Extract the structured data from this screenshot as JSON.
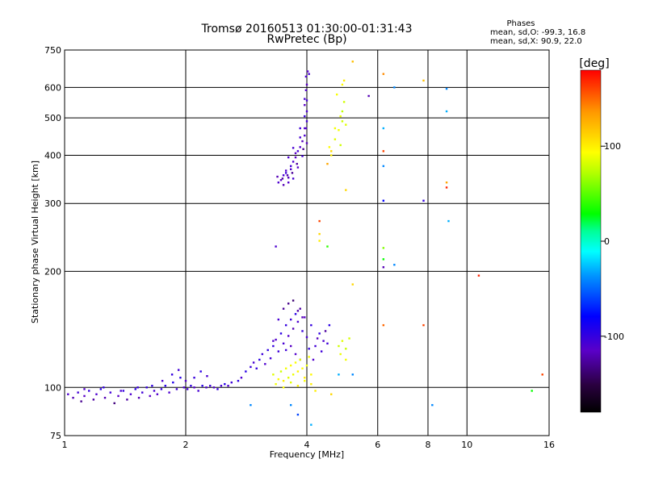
{
  "chart_data": {
    "type": "scatter",
    "title": "Tromsø 20160513 01:30:00-01:31:43",
    "subtitle": "RwPretec (Bp)",
    "xlabel": "Frequency [MHz]",
    "ylabel": "Stationary phase Virtual Height [km]",
    "x_scale": "log",
    "y_scale": "log",
    "xlim": [
      1,
      16
    ],
    "ylim": [
      75,
      750
    ],
    "x_ticks": [
      1,
      2,
      4,
      6,
      8,
      10,
      16
    ],
    "x_tick_labels": [
      "1",
      "2",
      "4",
      "6",
      "8",
      "10",
      "16"
    ],
    "y_ticks": [
      75,
      100,
      200,
      300,
      400,
      500,
      600,
      750
    ],
    "y_tick_labels": [
      "75",
      "100",
      "200",
      "300",
      "400",
      "500",
      "600",
      "750"
    ],
    "grid": true,
    "stats": {
      "header": "Phases",
      "line1": "mean, sd,O: -99.3, 16.8",
      "line2": "mean, sd,X:  90.9, 22.0"
    },
    "colorbar": {
      "label": "[deg]",
      "range": [
        -180,
        180
      ],
      "ticks": [
        100,
        0,
        -100
      ],
      "tick_labels": [
        "100",
        "0",
        "-100"
      ]
    },
    "series": [
      {
        "points": [
          [
            1.02,
            96,
            -110
          ],
          [
            1.05,
            94,
            -120
          ],
          [
            1.08,
            97,
            -105
          ],
          [
            1.1,
            92,
            -130
          ],
          [
            1.12,
            95,
            -115
          ],
          [
            1.15,
            98,
            -100
          ],
          [
            1.18,
            93,
            -125
          ],
          [
            1.2,
            96,
            -110
          ],
          [
            1.23,
            99,
            -95
          ],
          [
            1.26,
            94,
            -120
          ],
          [
            1.3,
            97,
            -105
          ],
          [
            1.33,
            91,
            -135
          ],
          [
            1.36,
            95,
            -115
          ],
          [
            1.4,
            98,
            -100
          ],
          [
            1.43,
            93,
            -125
          ],
          [
            1.46,
            96,
            -110
          ],
          [
            1.5,
            99,
            -95
          ],
          [
            1.53,
            94,
            -120
          ],
          [
            1.56,
            97,
            -105
          ],
          [
            1.6,
            100,
            -100
          ],
          [
            1.63,
            95,
            -115
          ],
          [
            1.67,
            98,
            -108
          ],
          [
            1.7,
            96,
            -112
          ],
          [
            1.74,
            99,
            -100
          ],
          [
            1.78,
            101,
            -95
          ],
          [
            1.82,
            97,
            -110
          ],
          [
            1.86,
            103,
            -92
          ],
          [
            1.9,
            99,
            -105
          ],
          [
            1.94,
            106,
            -95
          ],
          [
            1.98,
            100,
            -110
          ],
          [
            2.02,
            99,
            -105
          ],
          [
            2.06,
            101,
            -100
          ],
          [
            2.1,
            100,
            -112
          ],
          [
            2.15,
            98,
            -108
          ],
          [
            2.2,
            101,
            -95
          ],
          [
            2.25,
            100,
            -110
          ],
          [
            2.3,
            101,
            -104
          ],
          [
            2.35,
            100,
            -112
          ],
          [
            2.4,
            99,
            -100
          ],
          [
            2.45,
            101,
            -108
          ],
          [
            2.5,
            102,
            -95
          ],
          [
            2.55,
            101,
            -110
          ],
          [
            1.12,
            99,
            -112
          ],
          [
            1.25,
            100,
            -100
          ],
          [
            1.38,
            98,
            -108
          ],
          [
            1.52,
            100,
            -104
          ],
          [
            1.65,
            101,
            -98
          ],
          [
            1.75,
            104,
            -110
          ],
          [
            1.85,
            108,
            -100
          ],
          [
            1.92,
            111,
            -106
          ],
          [
            2.0,
            104,
            -112
          ],
          [
            2.1,
            106,
            -102
          ],
          [
            2.18,
            110,
            -96
          ],
          [
            2.26,
            107,
            -108
          ],
          [
            2.6,
            103,
            -104
          ],
          [
            2.7,
            104,
            -98
          ],
          [
            2.75,
            106,
            -110
          ],
          [
            2.82,
            110,
            -95
          ],
          [
            2.9,
            113,
            -102
          ],
          [
            2.95,
            116,
            -108
          ],
          [
            3.0,
            112,
            -100
          ],
          [
            3.05,
            118,
            -96
          ],
          [
            3.1,
            122,
            -104
          ],
          [
            3.15,
            115,
            -110
          ],
          [
            3.2,
            125,
            -98
          ],
          [
            3.25,
            119,
            -106
          ],
          [
            3.3,
            128,
            -100
          ],
          [
            3.35,
            133,
            -112
          ],
          [
            3.4,
            124,
            -104
          ],
          [
            3.45,
            138,
            -96
          ],
          [
            3.5,
            130,
            -108
          ],
          [
            3.55,
            145,
            -100
          ],
          [
            3.6,
            136,
            -112
          ],
          [
            3.65,
            150,
            -104
          ],
          [
            3.7,
            142,
            -120
          ],
          [
            3.75,
            155,
            -96
          ],
          [
            3.8,
            148,
            -110
          ],
          [
            3.85,
            160,
            -125
          ],
          [
            3.9,
            140,
            -102
          ],
          [
            3.95,
            152,
            -115
          ],
          [
            4.0,
            135,
            -108
          ],
          [
            4.1,
            145,
            -100
          ],
          [
            4.2,
            128,
            -106
          ],
          [
            4.3,
            138,
            -98
          ],
          [
            4.4,
            132,
            -110
          ],
          [
            4.5,
            130,
            -104
          ],
          [
            4.55,
            145,
            -96
          ],
          [
            3.3,
            132,
            -112
          ],
          [
            3.4,
            150,
            -108
          ],
          [
            3.5,
            160,
            -128
          ],
          [
            3.55,
            125,
            -104
          ],
          [
            3.6,
            165,
            -132
          ],
          [
            3.65,
            128,
            -116
          ],
          [
            3.7,
            168,
            -138
          ],
          [
            3.75,
            122,
            -112
          ],
          [
            3.8,
            158,
            -124
          ],
          [
            3.85,
            118,
            -108
          ],
          [
            3.9,
            152,
            -120
          ],
          [
            4.05,
            126,
            -100
          ],
          [
            4.15,
            118,
            -112
          ],
          [
            4.25,
            134,
            -118
          ],
          [
            4.35,
            124,
            -104
          ],
          [
            4.45,
            140,
            -126
          ],
          [
            3.3,
            108,
            85
          ],
          [
            3.4,
            105,
            95
          ],
          [
            3.45,
            110,
            80
          ],
          [
            3.5,
            104,
            100
          ],
          [
            3.55,
            112,
            90
          ],
          [
            3.6,
            106,
            85
          ],
          [
            3.65,
            114,
            95
          ],
          [
            3.7,
            108,
            88
          ],
          [
            3.75,
            116,
            92
          ],
          [
            3.8,
            110,
            98
          ],
          [
            3.85,
            118,
            86
          ],
          [
            3.9,
            112,
            94
          ],
          [
            3.95,
            106,
            100
          ],
          [
            4.0,
            114,
            88
          ],
          [
            4.05,
            120,
            92
          ],
          [
            4.1,
            108,
            96
          ],
          [
            3.35,
            102,
            90
          ],
          [
            3.5,
            100,
            94
          ],
          [
            3.65,
            103,
            86
          ],
          [
            3.8,
            101,
            98
          ],
          [
            3.95,
            104,
            92
          ],
          [
            4.1,
            102,
            100
          ],
          [
            4.8,
            128,
            80
          ],
          [
            4.9,
            132,
            85
          ],
          [
            5.0,
            126,
            78
          ],
          [
            5.1,
            134,
            82
          ],
          [
            4.85,
            122,
            88
          ],
          [
            5.0,
            118,
            90
          ],
          [
            4.6,
            96,
            110
          ],
          [
            4.2,
            98,
            100
          ],
          [
            3.4,
            340,
            -110
          ],
          [
            3.45,
            345,
            -115
          ],
          [
            3.5,
            355,
            -108
          ],
          [
            3.55,
            365,
            -112
          ],
          [
            3.6,
            350,
            -118
          ],
          [
            3.65,
            375,
            -105
          ],
          [
            3.7,
            385,
            -110
          ],
          [
            3.75,
            395,
            -115
          ],
          [
            3.8,
            410,
            -108
          ],
          [
            3.85,
            420,
            -112
          ],
          [
            3.9,
            435,
            -118
          ],
          [
            3.95,
            450,
            -110
          ],
          [
            3.5,
            335,
            -120
          ],
          [
            3.6,
            340,
            -112
          ],
          [
            3.7,
            348,
            -108
          ],
          [
            3.8,
            372,
            -114
          ],
          [
            3.9,
            398,
            -106
          ],
          [
            3.55,
            360,
            -104
          ],
          [
            3.65,
            368,
            -112
          ],
          [
            3.75,
            405,
            -116
          ],
          [
            3.85,
            445,
            -108
          ],
          [
            3.95,
            470,
            -112
          ],
          [
            4.0,
            490,
            -105
          ],
          [
            4.0,
            520,
            -110
          ],
          [
            3.95,
            540,
            -115
          ],
          [
            3.95,
            560,
            -108
          ],
          [
            3.98,
            590,
            -112
          ],
          [
            4.0,
            610,
            -118
          ],
          [
            3.98,
            640,
            -110
          ],
          [
            4.02,
            660,
            -115
          ],
          [
            4.05,
            650,
            -108
          ],
          [
            3.98,
            470,
            -112
          ],
          [
            4.0,
            430,
            -118
          ],
          [
            3.92,
            415,
            -130
          ],
          [
            3.78,
            380,
            -125
          ],
          [
            3.68,
            360,
            -128
          ],
          [
            3.58,
            355,
            -122
          ],
          [
            3.48,
            348,
            -126
          ],
          [
            3.38,
            352,
            -120
          ],
          [
            3.6,
            395,
            -110
          ],
          [
            3.7,
            418,
            -108
          ],
          [
            3.85,
            470,
            -104
          ],
          [
            3.95,
            505,
            -102
          ],
          [
            4.0,
            555,
            -108
          ],
          [
            4.55,
            420,
            95
          ],
          [
            4.6,
            400,
            100
          ],
          [
            4.7,
            440,
            85
          ],
          [
            4.8,
            465,
            90
          ],
          [
            4.9,
            490,
            80
          ],
          [
            4.9,
            520,
            75
          ],
          [
            4.95,
            550,
            80
          ],
          [
            5.0,
            480,
            85
          ],
          [
            4.85,
            505,
            88
          ],
          [
            4.75,
            575,
            92
          ],
          [
            4.9,
            610,
            95
          ],
          [
            4.95,
            625,
            100
          ],
          [
            4.85,
            425,
            80
          ],
          [
            4.7,
            470,
            90
          ],
          [
            4.6,
            410,
            110
          ],
          [
            5.2,
            700,
            120
          ],
          [
            6.2,
            650,
            140
          ],
          [
            7.8,
            625,
            120
          ],
          [
            6.2,
            470,
            -30
          ],
          [
            6.6,
            600,
            -40
          ],
          [
            6.2,
            410,
            160
          ],
          [
            6.2,
            375,
            -40
          ],
          [
            6.2,
            305,
            -80
          ],
          [
            6.2,
            230,
            60
          ],
          [
            6.2,
            215,
            30
          ],
          [
            6.2,
            205,
            -120
          ],
          [
            6.6,
            208,
            -40
          ],
          [
            7.8,
            305,
            -100
          ],
          [
            8.9,
            595,
            -40
          ],
          [
            8.9,
            520,
            -30
          ],
          [
            8.9,
            330,
            170
          ],
          [
            8.9,
            340,
            130
          ],
          [
            9.0,
            270,
            -30
          ],
          [
            10.7,
            195,
            170
          ],
          [
            7.8,
            145,
            160
          ],
          [
            6.2,
            145,
            150
          ],
          [
            15.4,
            108,
            160
          ],
          [
            14.5,
            98,
            30
          ],
          [
            8.2,
            90,
            -40
          ],
          [
            5.7,
            570,
            -120
          ],
          [
            4.3,
            270,
            160
          ],
          [
            4.3,
            250,
            110
          ],
          [
            4.3,
            240,
            100
          ],
          [
            4.5,
            232,
            40
          ],
          [
            3.35,
            232,
            -110
          ],
          [
            5.2,
            185,
            110
          ],
          [
            5.0,
            325,
            110
          ],
          [
            3.65,
            90,
            -40
          ],
          [
            3.8,
            85,
            -60
          ],
          [
            4.1,
            80,
            -30
          ],
          [
            2.9,
            90,
            -40
          ],
          [
            4.8,
            108,
            -30
          ],
          [
            5.2,
            108,
            -40
          ],
          [
            4.5,
            380,
            130
          ]
        ]
      }
    ]
  }
}
